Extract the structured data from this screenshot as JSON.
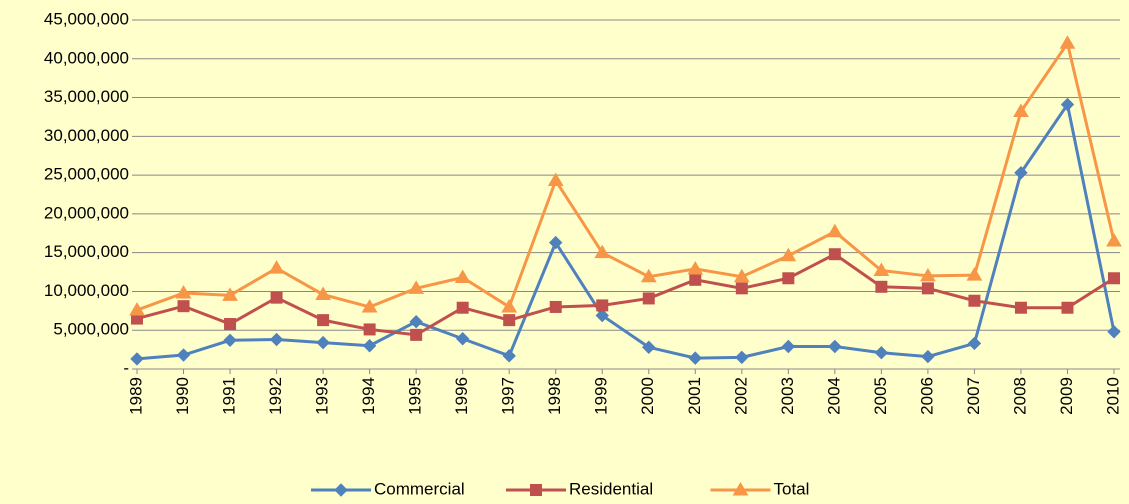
{
  "chart_data": {
    "type": "line",
    "categories": [
      "1989",
      "1990",
      "1991",
      "1992",
      "1993",
      "1994",
      "1995",
      "1996",
      "1997",
      "1998",
      "1999",
      "2000",
      "2001",
      "2002",
      "2003",
      "2004",
      "2005",
      "2006",
      "2007",
      "2008",
      "2009",
      "2010"
    ],
    "series": [
      {
        "name": "Commercial",
        "color": "#4f81bd",
        "marker": "diamond",
        "values": [
          1300000,
          1800000,
          3700000,
          3800000,
          3400000,
          3000000,
          6100000,
          3900000,
          1700000,
          16300000,
          6900000,
          2800000,
          1400000,
          1500000,
          2900000,
          2900000,
          2100000,
          1600000,
          3300000,
          25300000,
          34100000,
          4800000
        ]
      },
      {
        "name": "Residential",
        "color": "#c0504d",
        "marker": "square",
        "values": [
          6500000,
          8100000,
          5800000,
          9200000,
          6300000,
          5100000,
          4400000,
          7900000,
          6300000,
          8000000,
          8200000,
          9100000,
          11500000,
          10400000,
          11700000,
          14800000,
          10600000,
          10400000,
          8800000,
          7900000,
          7900000,
          11700000
        ]
      },
      {
        "name": "Total",
        "color": "#f79646",
        "marker": "triangle",
        "values": [
          7600000,
          9800000,
          9500000,
          13000000,
          9600000,
          8000000,
          10400000,
          11800000,
          8000000,
          24300000,
          15000000,
          11900000,
          12900000,
          11900000,
          14600000,
          17700000,
          12700000,
          12000000,
          12100000,
          33200000,
          42000000,
          16500000
        ]
      }
    ],
    "ylim": [
      0,
      45000000
    ],
    "yticks": [
      {
        "value": 0,
        "label": "-"
      },
      {
        "value": 5000000,
        "label": "5,000,000"
      },
      {
        "value": 10000000,
        "label": "10,000,000"
      },
      {
        "value": 15000000,
        "label": "15,000,000"
      },
      {
        "value": 20000000,
        "label": "20,000,000"
      },
      {
        "value": 25000000,
        "label": "25,000,000"
      },
      {
        "value": 30000000,
        "label": "30,000,000"
      },
      {
        "value": 35000000,
        "label": "35,000,000"
      },
      {
        "value": 40000000,
        "label": "40,000,000"
      },
      {
        "value": 45000000,
        "label": "45,000,000"
      }
    ],
    "grid": true,
    "legend": "bottom"
  }
}
